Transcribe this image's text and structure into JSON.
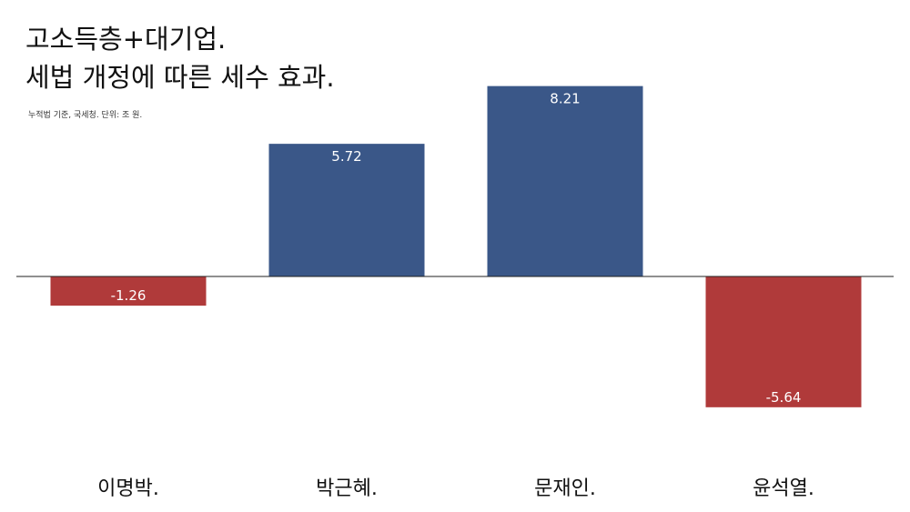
{
  "title": {
    "line1": "고소득층+대기업.",
    "line2": "세법 개정에 따른 세수 효과."
  },
  "subtitle": "누적법 기준, 국세청. 단위: 조 원.",
  "colors": {
    "positive": "#3a5788",
    "negative": "#b03a3a",
    "baseline": "#222222"
  },
  "chart_data": {
    "type": "bar",
    "categories": [
      "이명박.",
      "박근혜.",
      "문재인.",
      "윤석열."
    ],
    "values": [
      -1.26,
      5.72,
      8.21,
      -5.64
    ],
    "value_labels": [
      "-1.26",
      "5.72",
      "8.21",
      "-5.64"
    ],
    "title": "고소득층+대기업. 세법 개정에 따른 세수 효과.",
    "xlabel": "",
    "ylabel": "",
    "grid": false,
    "legend": "none"
  }
}
